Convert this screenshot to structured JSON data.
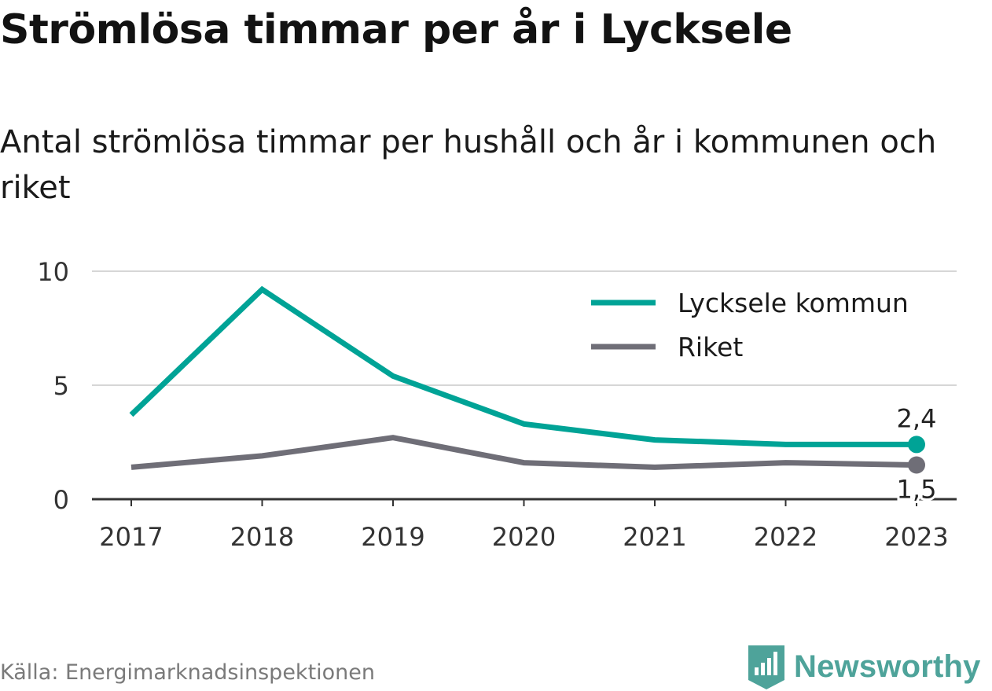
{
  "title": "Strömlösa timmar per år i Lycksele",
  "subtitle": "Antal strömlösa timmar per hushåll och år i kommunen och riket",
  "source": "Källa: Energimarknadsinspektionen",
  "brand": "Newsworthy",
  "chart_data": {
    "type": "line",
    "x": [
      "2017",
      "2018",
      "2019",
      "2020",
      "2021",
      "2022",
      "2023"
    ],
    "ylim": [
      0,
      10
    ],
    "yticks": [
      {
        "value": 0,
        "label": "0"
      },
      {
        "value": 5,
        "label": "5"
      },
      {
        "value": 10,
        "label": "10"
      }
    ],
    "grid": true,
    "legend_position": "top-right",
    "series": [
      {
        "name": "Lycksele kommun",
        "color": "#00a396",
        "values": [
          3.7,
          9.2,
          5.4,
          3.3,
          2.6,
          2.4,
          2.4
        ],
        "end_label": "2,4"
      },
      {
        "name": "Riket",
        "color": "#6f6e77",
        "values": [
          1.4,
          1.9,
          2.7,
          1.6,
          1.4,
          1.6,
          1.5
        ],
        "end_label": "1,5"
      }
    ]
  }
}
